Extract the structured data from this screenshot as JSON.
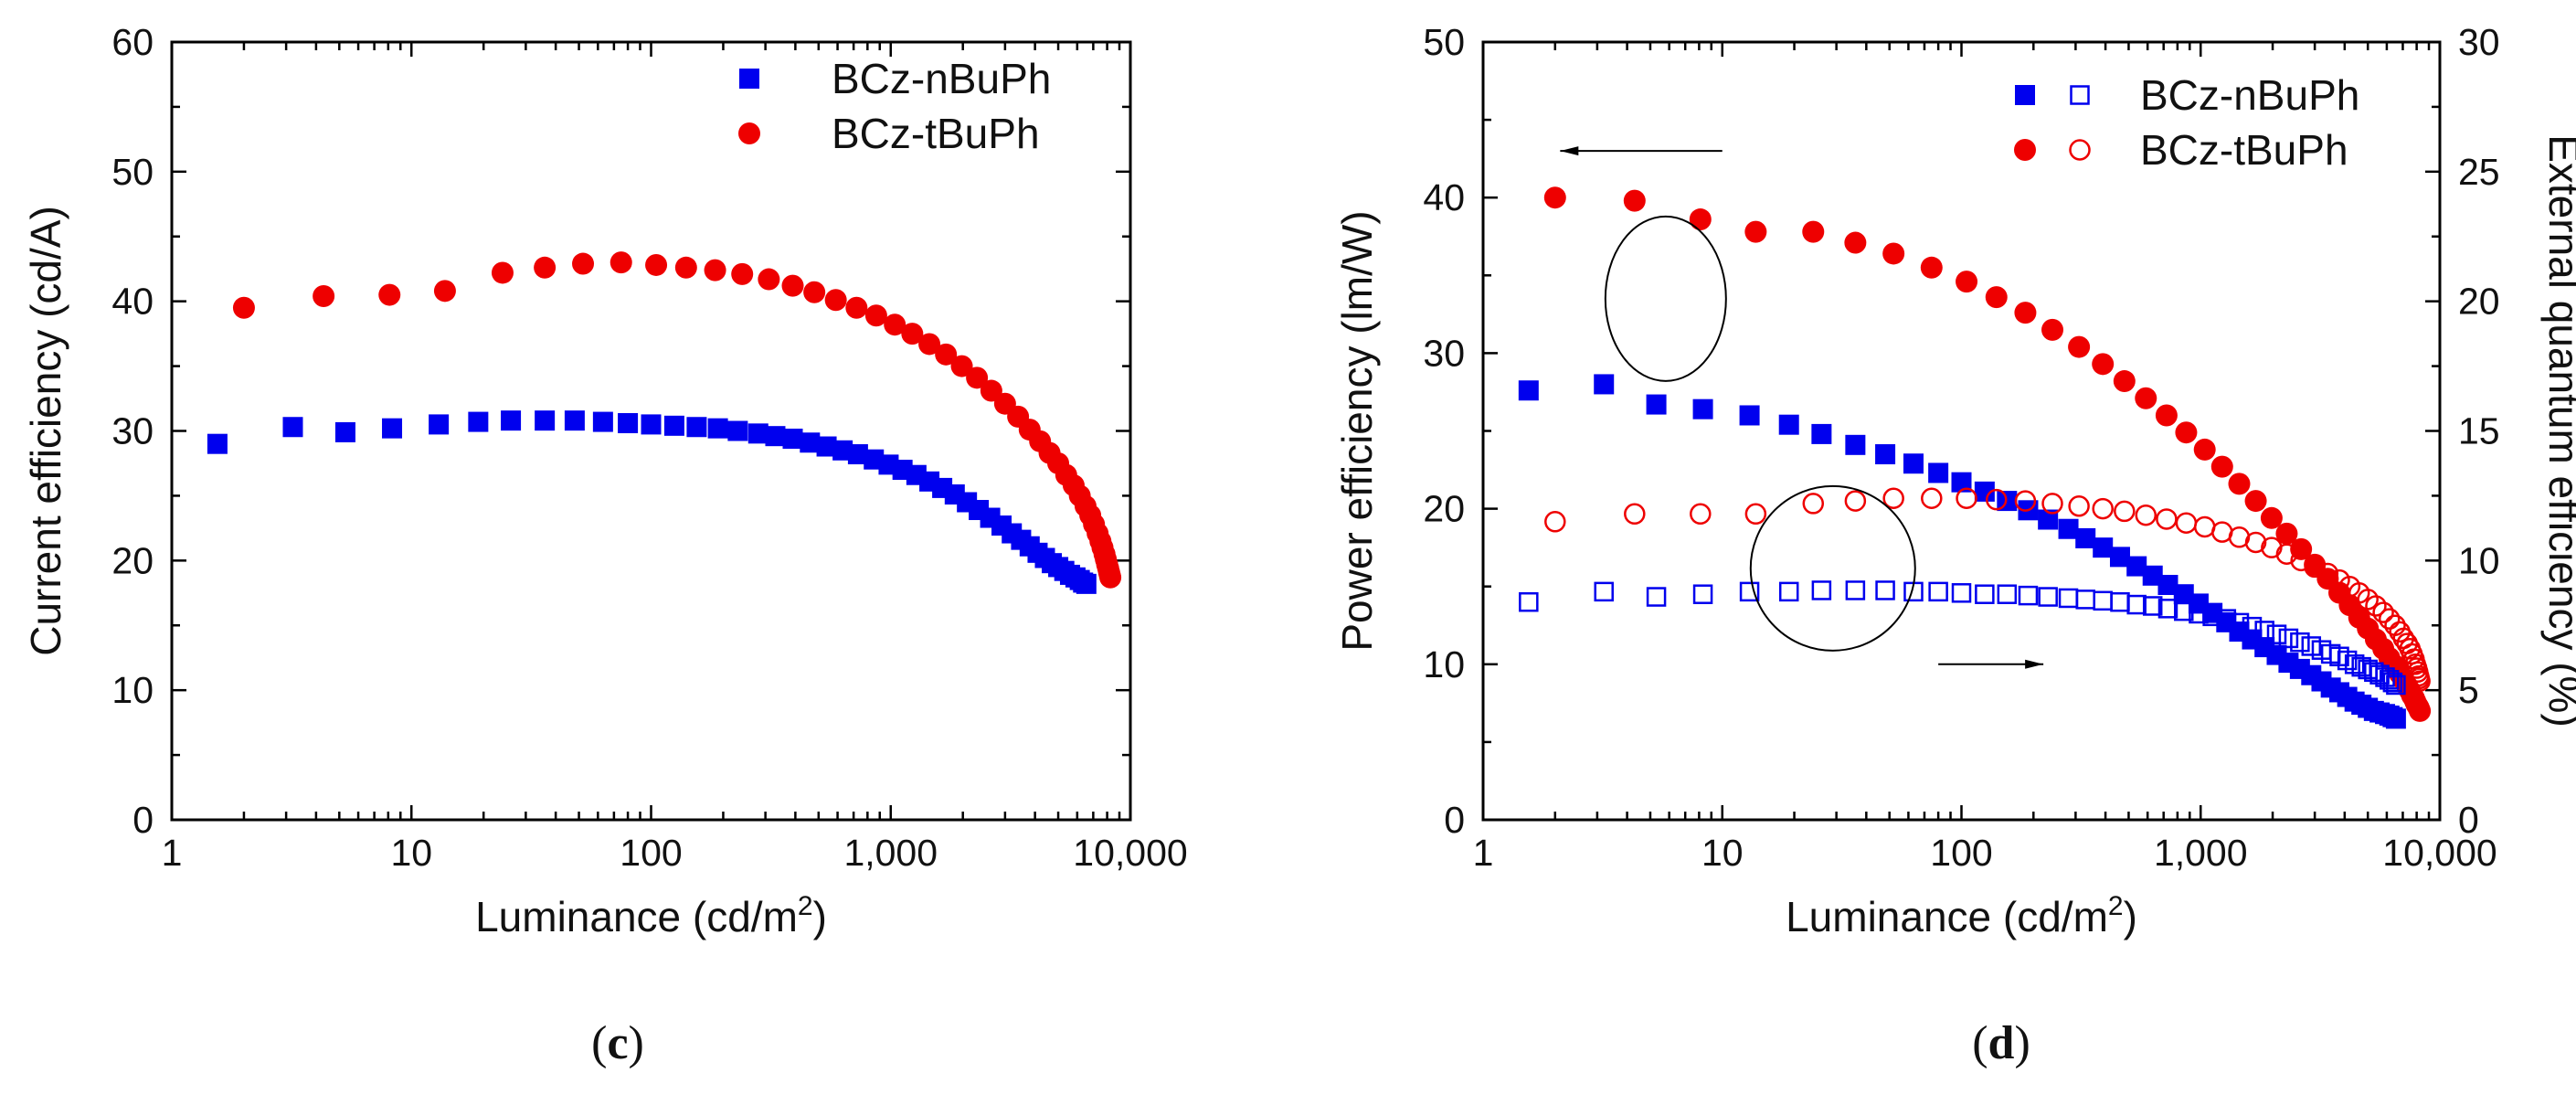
{
  "chart_data": [
    {
      "panel": "c",
      "type": "scatter",
      "xscale": "log",
      "xlabel": "Luminance (cd/m",
      "xlabel_superscript": "2",
      "xlabel_suffix": ")",
      "ylabel": "Current efficiency (cd/A)",
      "xlim": [
        1,
        10000
      ],
      "ylim": [
        0,
        60
      ],
      "xticks": [
        {
          "value": 1,
          "label": "1"
        },
        {
          "value": 10,
          "label": "10"
        },
        {
          "value": 100,
          "label": "100"
        },
        {
          "value": 1000,
          "label": "1,000"
        },
        {
          "value": 10000,
          "label": "10,000"
        }
      ],
      "yticks": [
        0,
        10,
        20,
        30,
        40,
        50,
        60
      ],
      "legend_position": "top-right",
      "series": [
        {
          "name": "BCz-nBuPh",
          "marker": "filled-square",
          "color": "#0000ee",
          "x": [
            1.55,
            3.2,
            5.3,
            8.3,
            13,
            19,
            26,
            36,
            48,
            63,
            80,
            100,
            125,
            155,
            190,
            230,
            280,
            330,
            390,
            460,
            540,
            630,
            730,
            850,
            980,
            1120,
            1280,
            1450,
            1640,
            1850,
            2080,
            2330,
            2600,
            2900,
            3200,
            3500,
            3800,
            4100,
            4400,
            4700,
            5000,
            5300,
            5600,
            5900,
            6150,
            6350,
            6550
          ],
          "y": [
            29.0,
            30.3,
            29.9,
            30.2,
            30.5,
            30.7,
            30.8,
            30.8,
            30.8,
            30.7,
            30.6,
            30.5,
            30.4,
            30.3,
            30.2,
            30.0,
            29.8,
            29.6,
            29.4,
            29.1,
            28.8,
            28.5,
            28.2,
            27.8,
            27.4,
            27.0,
            26.6,
            26.1,
            25.6,
            25.1,
            24.5,
            23.9,
            23.3,
            22.7,
            22.1,
            21.6,
            21.1,
            20.6,
            20.2,
            19.8,
            19.5,
            19.2,
            18.9,
            18.7,
            18.5,
            18.3,
            18.2
          ]
        },
        {
          "name": "BCz-tBuPh",
          "marker": "filled-circle",
          "color": "#ee0000",
          "x": [
            2.0,
            4.3,
            8.1,
            13.8,
            24,
            36,
            52,
            75,
            105,
            140,
            185,
            240,
            310,
            390,
            480,
            590,
            720,
            870,
            1040,
            1230,
            1450,
            1700,
            1980,
            2290,
            2630,
            3000,
            3400,
            3800,
            4200,
            4600,
            5000,
            5400,
            5800,
            6150,
            6500,
            6800,
            7050,
            7300,
            7500,
            7650,
            7800,
            7900,
            8000,
            8080,
            8150,
            8200,
            8250
          ],
          "y": [
            39.5,
            40.4,
            40.5,
            40.8,
            42.2,
            42.6,
            42.9,
            43.0,
            42.8,
            42.6,
            42.4,
            42.1,
            41.7,
            41.2,
            40.7,
            40.1,
            39.5,
            38.9,
            38.2,
            37.5,
            36.7,
            35.9,
            35.0,
            34.1,
            33.1,
            32.1,
            31.1,
            30.1,
            29.2,
            28.3,
            27.5,
            26.6,
            25.8,
            25.0,
            24.2,
            23.5,
            22.8,
            22.1,
            21.5,
            21.0,
            20.5,
            20.1,
            19.7,
            19.4,
            19.1,
            18.9,
            18.7
          ]
        }
      ],
      "caption": "c"
    },
    {
      "panel": "d",
      "type": "scatter",
      "xscale": "log",
      "xlabel": "Luminance (cd/m",
      "xlabel_superscript": "2",
      "xlabel_suffix": ")",
      "ylabel": "Power efficiency (lm/W)",
      "ylabel_right": "External quantum efficiency (%)",
      "xlim": [
        1,
        10000
      ],
      "ylim": [
        0,
        50
      ],
      "ylim_right": [
        0,
        30
      ],
      "xticks": [
        {
          "value": 1,
          "label": "1"
        },
        {
          "value": 10,
          "label": "10"
        },
        {
          "value": 100,
          "label": "100"
        },
        {
          "value": 1000,
          "label": "1,000"
        },
        {
          "value": 10000,
          "label": "10,000"
        }
      ],
      "yticks": [
        0,
        10,
        20,
        30,
        40,
        50
      ],
      "yticks_right": [
        0,
        5,
        10,
        15,
        20,
        25,
        30
      ],
      "legend_position": "top-right",
      "annotations": [
        "ellipse around power-efficiency points with arrow pointing left",
        "ellipse around EQE points with arrow pointing right"
      ],
      "series": [
        {
          "name": "BCz-nBuPh",
          "axis": "left",
          "metric": "Power efficiency",
          "marker": "filled-square",
          "color": "#0000ee",
          "x": [
            1.55,
            3.2,
            5.3,
            8.3,
            13,
            19,
            26,
            36,
            48,
            63,
            80,
            100,
            125,
            155,
            190,
            230,
            280,
            330,
            390,
            460,
            540,
            630,
            730,
            850,
            980,
            1120,
            1280,
            1450,
            1640,
            1850,
            2080,
            2330,
            2600,
            2900,
            3200,
            3500,
            3800,
            4100,
            4400,
            4700,
            5000,
            5300,
            5600,
            5900,
            6150,
            6350,
            6550
          ],
          "y": [
            27.6,
            28.0,
            26.7,
            26.4,
            26.0,
            25.4,
            24.8,
            24.1,
            23.5,
            22.9,
            22.3,
            21.7,
            21.1,
            20.5,
            19.9,
            19.3,
            18.7,
            18.1,
            17.5,
            16.9,
            16.3,
            15.7,
            15.1,
            14.5,
            13.9,
            13.3,
            12.7,
            12.1,
            11.6,
            11.1,
            10.6,
            10.1,
            9.7,
            9.3,
            8.9,
            8.5,
            8.2,
            7.9,
            7.6,
            7.4,
            7.2,
            7.0,
            6.9,
            6.8,
            6.7,
            6.6,
            6.5
          ]
        },
        {
          "name": "BCz-tBuPh",
          "axis": "left",
          "metric": "Power efficiency",
          "marker": "filled-circle",
          "color": "#ee0000",
          "x": [
            2.0,
            4.3,
            8.1,
            13.8,
            24,
            36,
            52,
            75,
            105,
            140,
            185,
            240,
            310,
            390,
            480,
            590,
            720,
            870,
            1040,
            1230,
            1450,
            1700,
            1980,
            2290,
            2630,
            3000,
            3400,
            3800,
            4200,
            4600,
            5000,
            5400,
            5800,
            6150,
            6500,
            6800,
            7050,
            7300,
            7500,
            7650,
            7800,
            7900,
            8000,
            8080,
            8150,
            8200,
            8250
          ],
          "y": [
            40.0,
            39.8,
            38.6,
            37.8,
            37.8,
            37.1,
            36.4,
            35.5,
            34.6,
            33.6,
            32.6,
            31.5,
            30.4,
            29.3,
            28.2,
            27.1,
            26.0,
            24.9,
            23.8,
            22.7,
            21.6,
            20.5,
            19.4,
            18.4,
            17.4,
            16.4,
            15.5,
            14.6,
            13.8,
            13.0,
            12.3,
            11.6,
            11.0,
            10.4,
            9.9,
            9.4,
            9.0,
            8.6,
            8.3,
            8.0,
            7.8,
            7.6,
            7.4,
            7.3,
            7.2,
            7.1,
            7.0
          ]
        },
        {
          "name": "BCz-nBuPh",
          "axis": "right",
          "metric": "External quantum efficiency",
          "marker": "open-square",
          "color": "#0000ee",
          "x": [
            1.55,
            3.2,
            5.3,
            8.3,
            13,
            19,
            26,
            36,
            48,
            63,
            80,
            100,
            125,
            155,
            190,
            230,
            280,
            330,
            390,
            460,
            540,
            630,
            730,
            850,
            980,
            1120,
            1280,
            1450,
            1640,
            1850,
            2080,
            2330,
            2600,
            2900,
            3200,
            3500,
            3800,
            4100,
            4400,
            4700,
            5000,
            5300,
            5600,
            5900,
            6150,
            6350,
            6550
          ],
          "y": [
            8.4,
            8.8,
            8.6,
            8.7,
            8.8,
            8.8,
            8.85,
            8.85,
            8.85,
            8.8,
            8.8,
            8.75,
            8.7,
            8.7,
            8.65,
            8.6,
            8.55,
            8.5,
            8.45,
            8.4,
            8.3,
            8.25,
            8.15,
            8.05,
            7.95,
            7.85,
            7.75,
            7.6,
            7.45,
            7.3,
            7.15,
            7.0,
            6.85,
            6.7,
            6.55,
            6.4,
            6.3,
            6.15,
            6.0,
            5.9,
            5.8,
            5.7,
            5.6,
            5.5,
            5.4,
            5.3,
            5.2
          ]
        },
        {
          "name": "BCz-tBuPh",
          "axis": "right",
          "metric": "External quantum efficiency",
          "marker": "open-circle",
          "color": "#ee0000",
          "x": [
            2.0,
            4.3,
            8.1,
            13.8,
            24,
            36,
            52,
            75,
            105,
            140,
            185,
            240,
            310,
            390,
            480,
            590,
            720,
            870,
            1040,
            1230,
            1450,
            1700,
            1980,
            2290,
            2630,
            3000,
            3400,
            3800,
            4200,
            4600,
            5000,
            5400,
            5800,
            6150,
            6500,
            6800,
            7050,
            7300,
            7500,
            7650,
            7800,
            7900,
            8000,
            8080,
            8150,
            8200,
            8250
          ],
          "y": [
            11.5,
            11.8,
            11.8,
            11.8,
            12.2,
            12.3,
            12.4,
            12.4,
            12.4,
            12.35,
            12.3,
            12.2,
            12.1,
            12.0,
            11.9,
            11.75,
            11.6,
            11.45,
            11.3,
            11.1,
            10.9,
            10.7,
            10.5,
            10.25,
            10.0,
            9.75,
            9.5,
            9.25,
            9.0,
            8.75,
            8.5,
            8.25,
            8.0,
            7.75,
            7.5,
            7.25,
            7.0,
            6.8,
            6.6,
            6.4,
            6.2,
            6.0,
            5.85,
            5.7,
            5.55,
            5.45,
            5.35
          ]
        }
      ],
      "caption": "d"
    }
  ]
}
